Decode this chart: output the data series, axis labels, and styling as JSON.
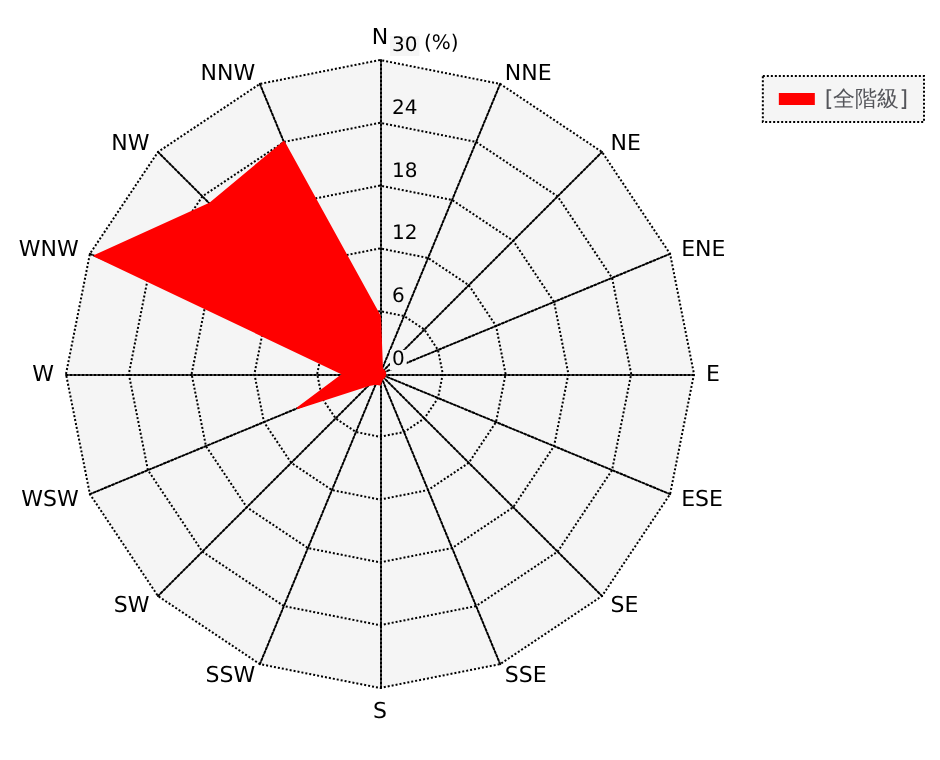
{
  "chart_data": {
    "type": "radar",
    "ylabel": "(%)",
    "categories": [
      "N",
      "NNE",
      "NE",
      "ENE",
      "E",
      "ESE",
      "SE",
      "SSE",
      "S",
      "SSW",
      "SW",
      "WSW",
      "W",
      "WNW",
      "NW",
      "NNW"
    ],
    "series": [
      {
        "name": "[全階級]",
        "color": "#ff0000",
        "values": [
          5.5,
          0.5,
          0.5,
          0.5,
          0.5,
          0.5,
          0.5,
          0.5,
          1,
          1,
          1.5,
          8.5,
          3.5,
          29.5,
          23,
          24
        ]
      }
    ],
    "ylim": [
      0,
      30
    ],
    "yticks": [
      0,
      6,
      12,
      18,
      24,
      30
    ],
    "grid": true,
    "legend": "top right",
    "marker": "none"
  }
}
